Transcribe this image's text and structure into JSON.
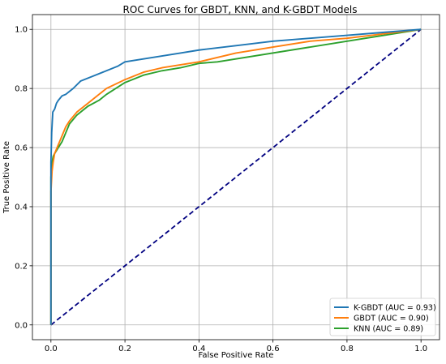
{
  "chart_data": {
    "type": "line",
    "title": "ROC Curves for GBDT, KNN, and K-GBDT Models",
    "xlabel": "False Positive Rate",
    "ylabel": "True Positive Rate",
    "xlim": [
      -0.05,
      1.05
    ],
    "ylim": [
      -0.05,
      1.05
    ],
    "xticks": [
      "0.0",
      "0.2",
      "0.4",
      "0.6",
      "0.8",
      "1.0"
    ],
    "yticks": [
      "0.0",
      "0.2",
      "0.4",
      "0.6",
      "0.8",
      "1.0"
    ],
    "grid": true,
    "legend_position": "lower-right",
    "series": [
      {
        "name": "K-GBDT (AUC = 0.93)",
        "color": "#1f77b4",
        "x": [
          0,
          0,
          0.002,
          0.005,
          0.01,
          0.015,
          0.02,
          0.03,
          0.04,
          0.05,
          0.06,
          0.08,
          0.1,
          0.12,
          0.15,
          0.18,
          0.2,
          0.25,
          0.3,
          0.35,
          0.4,
          0.5,
          0.6,
          0.7,
          0.8,
          0.9,
          1.0
        ],
        "y": [
          0,
          0.55,
          0.65,
          0.72,
          0.73,
          0.75,
          0.76,
          0.775,
          0.78,
          0.79,
          0.8,
          0.825,
          0.835,
          0.845,
          0.86,
          0.875,
          0.89,
          0.9,
          0.91,
          0.92,
          0.93,
          0.945,
          0.96,
          0.97,
          0.98,
          0.99,
          1.0
        ]
      },
      {
        "name": "GBDT (AUC = 0.90)",
        "color": "#ff7f0e",
        "x": [
          0,
          0,
          0.003,
          0.006,
          0.01,
          0.02,
          0.03,
          0.04,
          0.05,
          0.07,
          0.1,
          0.13,
          0.15,
          0.2,
          0.25,
          0.3,
          0.4,
          0.5,
          0.6,
          0.7,
          0.8,
          0.9,
          1.0
        ],
        "y": [
          0,
          0.45,
          0.52,
          0.55,
          0.58,
          0.61,
          0.64,
          0.67,
          0.69,
          0.72,
          0.75,
          0.78,
          0.8,
          0.83,
          0.855,
          0.87,
          0.89,
          0.92,
          0.94,
          0.96,
          0.97,
          0.985,
          1.0
        ]
      },
      {
        "name": "KNN (AUC = 0.89)",
        "color": "#2ca02c",
        "x": [
          0,
          0,
          0.003,
          0.006,
          0.01,
          0.02,
          0.03,
          0.04,
          0.05,
          0.07,
          0.1,
          0.13,
          0.15,
          0.2,
          0.25,
          0.3,
          0.35,
          0.4,
          0.45,
          1.0
        ],
        "y": [
          0,
          0.5,
          0.55,
          0.57,
          0.58,
          0.6,
          0.62,
          0.65,
          0.68,
          0.71,
          0.74,
          0.76,
          0.78,
          0.82,
          0.845,
          0.86,
          0.87,
          0.885,
          0.89,
          1.0
        ]
      },
      {
        "color": "#000080",
        "dashed": true,
        "x": [
          0,
          1
        ],
        "y": [
          0,
          1
        ]
      }
    ]
  }
}
